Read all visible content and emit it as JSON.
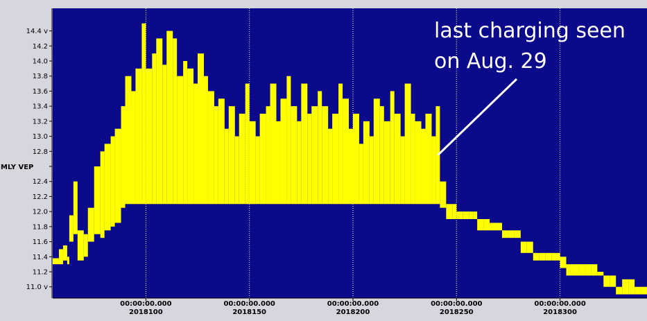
{
  "chart_data": {
    "type": "area",
    "title": "",
    "ylabel": "MLY VEP",
    "y_unit": "v",
    "ylim": [
      10.85,
      14.7
    ],
    "xlim": [
      2018055,
      2018342
    ],
    "y_ticks": [
      11.0,
      11.2,
      11.4,
      11.6,
      11.8,
      12.0,
      12.2,
      12.4,
      12.6,
      12.8,
      13.0,
      13.2,
      13.4,
      13.6,
      13.8,
      14.0,
      14.2,
      14.4
    ],
    "y_tick_labels": [
      "11.0 v",
      "11.2",
      "11.4",
      "11.6",
      "11.8",
      "12.0",
      "12.2",
      "12.4",
      "",
      "12.8",
      "13.0",
      "13.2",
      "13.4",
      "13.6",
      "13.8",
      "14.0",
      "14.2",
      "14.4 v"
    ],
    "x_ticks": [
      {
        "x": 2018100,
        "time": "00:00:00.000",
        "day": "2018100"
      },
      {
        "x": 2018150,
        "time": "00:00:00.000",
        "day": "2018150"
      },
      {
        "x": 2018200,
        "time": "00:00:00.000",
        "day": "2018200"
      },
      {
        "x": 2018250,
        "time": "00:00:00.000",
        "day": "2018250"
      },
      {
        "x": 2018300,
        "time": "00:00:00.000",
        "day": "2018300"
      }
    ],
    "grid": "vertical-dotted",
    "annotation": {
      "lines": [
        "last charging seen",
        "on Aug. 29"
      ],
      "points_to": {
        "x": 2018241,
        "y": 12.75
      }
    },
    "series": [
      {
        "name": "",
        "color": "#ffff00",
        "columns": [
          "x",
          "y_min",
          "y_max"
        ],
        "values": [
          [
            2018055,
            11.3,
            11.38
          ],
          [
            2018058,
            11.3,
            11.5
          ],
          [
            2018060,
            11.35,
            11.55
          ],
          [
            2018062,
            11.3,
            11.4
          ],
          [
            2018063,
            11.6,
            11.95
          ],
          [
            2018065,
            11.7,
            12.4
          ],
          [
            2018067,
            11.35,
            11.75
          ],
          [
            2018070,
            11.4,
            11.7
          ],
          [
            2018072,
            11.6,
            12.05
          ],
          [
            2018075,
            11.7,
            12.6
          ],
          [
            2018078,
            11.65,
            12.8
          ],
          [
            2018080,
            11.75,
            12.9
          ],
          [
            2018083,
            11.8,
            13.0
          ],
          [
            2018085,
            11.85,
            13.1
          ],
          [
            2018088,
            12.05,
            13.4
          ],
          [
            2018090,
            12.1,
            13.8
          ],
          [
            2018093,
            12.1,
            13.6
          ],
          [
            2018095,
            12.1,
            13.9
          ],
          [
            2018098,
            12.1,
            14.5
          ],
          [
            2018100,
            12.1,
            13.9
          ],
          [
            2018103,
            12.1,
            14.1
          ],
          [
            2018105,
            12.1,
            14.3
          ],
          [
            2018108,
            12.1,
            13.95
          ],
          [
            2018110,
            12.1,
            14.4
          ],
          [
            2018113,
            12.1,
            14.3
          ],
          [
            2018115,
            12.1,
            13.8
          ],
          [
            2018118,
            12.1,
            14.0
          ],
          [
            2018120,
            12.1,
            13.9
          ],
          [
            2018123,
            12.1,
            13.7
          ],
          [
            2018125,
            12.1,
            14.1
          ],
          [
            2018128,
            12.1,
            13.8
          ],
          [
            2018130,
            12.1,
            13.6
          ],
          [
            2018133,
            12.1,
            13.4
          ],
          [
            2018135,
            12.1,
            13.5
          ],
          [
            2018138,
            12.1,
            13.1
          ],
          [
            2018140,
            12.1,
            13.4
          ],
          [
            2018143,
            12.1,
            13.0
          ],
          [
            2018145,
            12.1,
            13.3
          ],
          [
            2018148,
            12.1,
            13.7
          ],
          [
            2018150,
            12.1,
            13.2
          ],
          [
            2018153,
            12.1,
            13.0
          ],
          [
            2018155,
            12.1,
            13.3
          ],
          [
            2018158,
            12.1,
            13.4
          ],
          [
            2018160,
            12.1,
            13.7
          ],
          [
            2018163,
            12.1,
            13.2
          ],
          [
            2018165,
            12.1,
            13.5
          ],
          [
            2018168,
            12.1,
            13.8
          ],
          [
            2018170,
            12.1,
            13.4
          ],
          [
            2018173,
            12.1,
            13.2
          ],
          [
            2018175,
            12.1,
            13.7
          ],
          [
            2018178,
            12.1,
            13.3
          ],
          [
            2018180,
            12.1,
            13.4
          ],
          [
            2018183,
            12.1,
            13.6
          ],
          [
            2018185,
            12.1,
            13.4
          ],
          [
            2018188,
            12.1,
            13.1
          ],
          [
            2018190,
            12.1,
            13.3
          ],
          [
            2018193,
            12.1,
            13.7
          ],
          [
            2018195,
            12.1,
            13.5
          ],
          [
            2018198,
            12.1,
            13.1
          ],
          [
            2018200,
            12.1,
            13.3
          ],
          [
            2018203,
            12.1,
            12.9
          ],
          [
            2018205,
            12.1,
            13.2
          ],
          [
            2018208,
            12.1,
            13.0
          ],
          [
            2018210,
            12.1,
            13.5
          ],
          [
            2018213,
            12.1,
            13.4
          ],
          [
            2018215,
            12.1,
            13.2
          ],
          [
            2018218,
            12.1,
            13.6
          ],
          [
            2018220,
            12.1,
            13.3
          ],
          [
            2018223,
            12.1,
            13.0
          ],
          [
            2018225,
            12.1,
            13.7
          ],
          [
            2018228,
            12.1,
            13.3
          ],
          [
            2018230,
            12.1,
            13.2
          ],
          [
            2018233,
            12.1,
            13.1
          ],
          [
            2018235,
            12.1,
            13.3
          ],
          [
            2018238,
            12.1,
            13.0
          ],
          [
            2018240,
            12.1,
            13.4
          ],
          [
            2018242,
            12.05,
            12.4
          ],
          [
            2018245,
            11.9,
            12.1
          ],
          [
            2018248,
            11.9,
            12.1
          ],
          [
            2018250,
            11.9,
            12.0
          ],
          [
            2018253,
            11.9,
            12.0
          ],
          [
            2018256,
            11.9,
            12.0
          ],
          [
            2018258,
            11.9,
            12.0
          ],
          [
            2018260,
            11.75,
            11.9
          ],
          [
            2018263,
            11.75,
            11.9
          ],
          [
            2018266,
            11.75,
            11.85
          ],
          [
            2018269,
            11.75,
            11.85
          ],
          [
            2018272,
            11.65,
            11.75
          ],
          [
            2018275,
            11.65,
            11.75
          ],
          [
            2018278,
            11.65,
            11.75
          ],
          [
            2018281,
            11.45,
            11.6
          ],
          [
            2018284,
            11.45,
            11.6
          ],
          [
            2018287,
            11.35,
            11.45
          ],
          [
            2018290,
            11.35,
            11.45
          ],
          [
            2018293,
            11.35,
            11.45
          ],
          [
            2018296,
            11.35,
            11.45
          ],
          [
            2018300,
            11.25,
            11.4
          ],
          [
            2018303,
            11.15,
            11.3
          ],
          [
            2018306,
            11.15,
            11.3
          ],
          [
            2018309,
            11.15,
            11.3
          ],
          [
            2018312,
            11.15,
            11.3
          ],
          [
            2018315,
            11.15,
            11.3
          ],
          [
            2018318,
            11.15,
            11.2
          ],
          [
            2018321,
            11.0,
            11.15
          ],
          [
            2018324,
            11.0,
            11.15
          ],
          [
            2018327,
            10.9,
            11.0
          ],
          [
            2018330,
            10.9,
            11.1
          ],
          [
            2018333,
            10.9,
            11.1
          ],
          [
            2018336,
            10.9,
            11.0
          ],
          [
            2018339,
            10.9,
            11.0
          ]
        ]
      }
    ]
  }
}
